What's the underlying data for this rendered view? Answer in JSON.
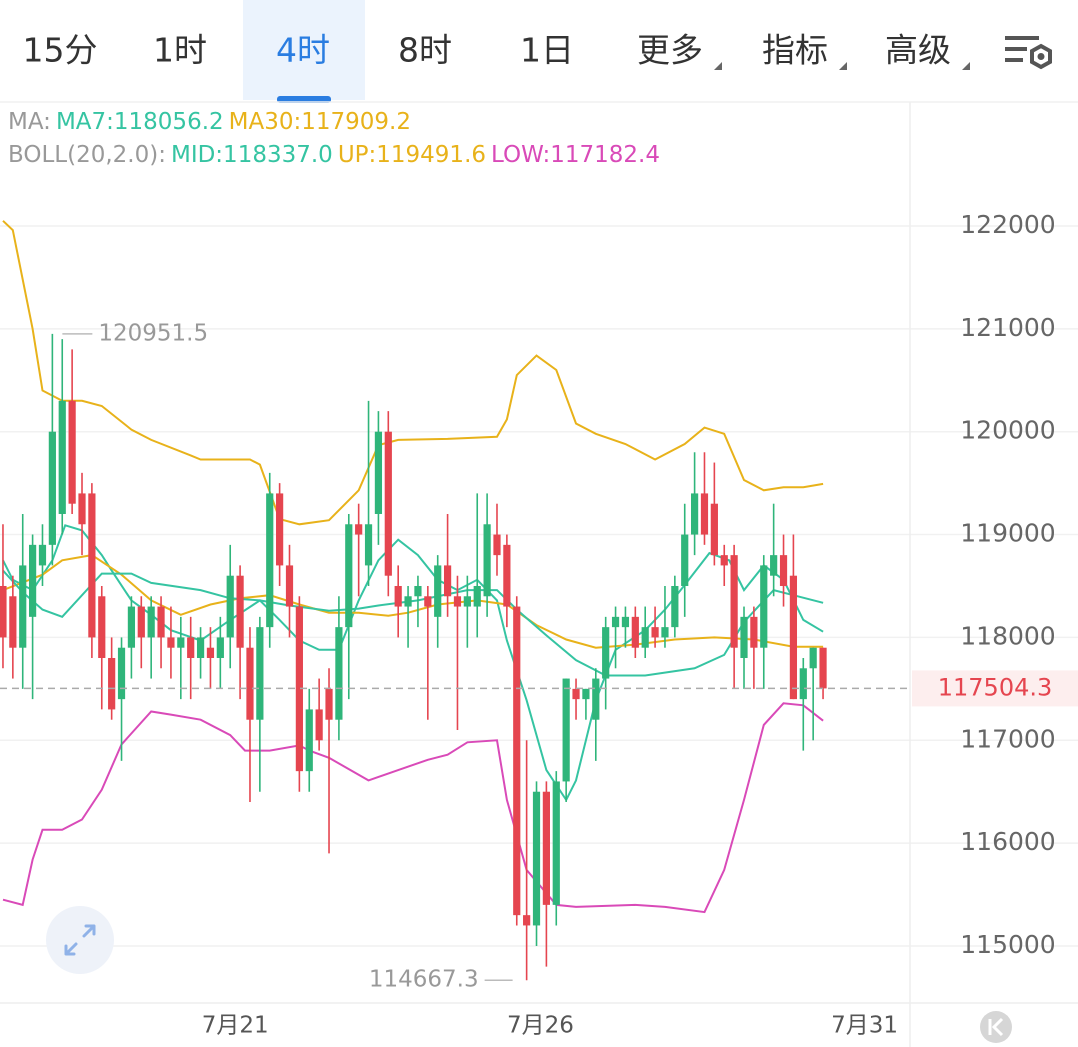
{
  "tabs": [
    {
      "label": "15分"
    },
    {
      "label": "1时"
    },
    {
      "label": "4时"
    },
    {
      "label": "8时"
    },
    {
      "label": "1日"
    },
    {
      "label": "更多",
      "dropdown": true
    },
    {
      "label": "指标",
      "dropdown": true
    },
    {
      "label": "高级",
      "dropdown": true
    }
  ],
  "selected_tab_index": 2,
  "chart_data": {
    "type": "candlestick",
    "legend_groups": [
      "MA:",
      "BOLL(20,2.0):"
    ],
    "up_color": "#2fb57a",
    "down_color": "#e5454f",
    "xlim": [
      -0.3,
      91.8
    ],
    "xticks": [
      {
        "value": 23.5,
        "label": "7月21"
      },
      {
        "value": 54.4,
        "label": "7月26"
      },
      {
        "value": 87.2,
        "label": "7月31"
      }
    ],
    "ylim": [
      114446,
      123176
    ],
    "yticks": [
      115000,
      116000,
      117000,
      118000,
      119000,
      120000,
      121000,
      122000
    ],
    "grid": true,
    "last_price": 117504.3,
    "high_index": 5,
    "low_index": 53,
    "ohlc": [
      [
        118500,
        119100,
        117700,
        118000
      ],
      [
        118400,
        118600,
        117600,
        117900
      ],
      [
        117900,
        119200,
        117500,
        118700
      ],
      [
        118200,
        119000,
        117400,
        118900
      ],
      [
        118700,
        119100,
        118500,
        118900
      ],
      [
        118900,
        120951.5,
        118700,
        120000
      ],
      [
        119200,
        120900,
        119000,
        120300
      ],
      [
        120300,
        120800,
        119200,
        119300
      ],
      [
        119400,
        119600,
        118800,
        119100
      ],
      [
        119400,
        119500,
        117800,
        118000
      ],
      [
        118400,
        118500,
        117300,
        117800
      ],
      [
        117800,
        118000,
        117200,
        117300
      ],
      [
        117400,
        118000,
        116800,
        117900
      ],
      [
        117900,
        118400,
        117600,
        118300
      ],
      [
        118300,
        118400,
        117700,
        118000
      ],
      [
        118000,
        118400,
        117600,
        118300
      ],
      [
        118300,
        118400,
        117700,
        118000
      ],
      [
        118000,
        118300,
        117600,
        117900
      ],
      [
        117900,
        118200,
        117400,
        118000
      ],
      [
        118000,
        118200,
        117400,
        117800
      ],
      [
        117800,
        118100,
        117600,
        118000
      ],
      [
        117900,
        118100,
        117500,
        117800
      ],
      [
        117800,
        118200,
        117500,
        118000
      ],
      [
        118000,
        118900,
        117700,
        118600
      ],
      [
        118600,
        118700,
        117400,
        117900
      ],
      [
        117900,
        118100,
        116400,
        117200
      ],
      [
        117200,
        118200,
        116500,
        118100
      ],
      [
        118100,
        119600,
        117900,
        119400
      ],
      [
        119400,
        119500,
        118500,
        118700
      ],
      [
        118700,
        118900,
        118000,
        118300
      ],
      [
        118300,
        118400,
        116500,
        116700
      ],
      [
        116700,
        117500,
        116500,
        117300
      ],
      [
        117300,
        117600,
        116900,
        117000
      ],
      [
        117500,
        117700,
        115900,
        117200
      ],
      [
        117200,
        118400,
        117000,
        118100
      ],
      [
        118100,
        119200,
        117400,
        119100
      ],
      [
        119100,
        119300,
        118400,
        119000
      ],
      [
        118700,
        120300,
        118500,
        119100
      ],
      [
        119200,
        120200,
        118900,
        120000
      ],
      [
        120000,
        120200,
        118400,
        118600
      ],
      [
        118500,
        118700,
        118000,
        118300
      ],
      [
        118300,
        118500,
        117900,
        118400
      ],
      [
        118400,
        118600,
        118100,
        118500
      ],
      [
        118400,
        118500,
        117200,
        118300
      ],
      [
        118200,
        118800,
        117900,
        118700
      ],
      [
        118700,
        119200,
        118200,
        118400
      ],
      [
        118400,
        118600,
        117100,
        118300
      ],
      [
        118300,
        118600,
        117900,
        118400
      ],
      [
        118300,
        119400,
        118000,
        118500
      ],
      [
        118400,
        119400,
        118200,
        119100
      ],
      [
        119000,
        119300,
        118600,
        118800
      ],
      [
        118900,
        119000,
        118100,
        118300
      ],
      [
        118300,
        118400,
        115200,
        115300
      ],
      [
        115300,
        117000,
        114667.3,
        115200
      ],
      [
        115200,
        116600,
        115000,
        116500
      ],
      [
        116500,
        116600,
        114800,
        115400
      ],
      [
        115400,
        116700,
        115200,
        116600
      ],
      [
        116600,
        117600,
        116400,
        117600
      ],
      [
        117500,
        117600,
        117200,
        117400
      ],
      [
        117400,
        117500,
        117200,
        117500
      ],
      [
        117200,
        117700,
        116800,
        117600
      ],
      [
        117600,
        118200,
        117300,
        118100
      ],
      [
        118100,
        118300,
        117700,
        118200
      ],
      [
        118100,
        118300,
        117900,
        118200
      ],
      [
        118200,
        118300,
        117800,
        117900
      ],
      [
        117900,
        118300,
        117800,
        118100
      ],
      [
        118100,
        118300,
        117900,
        118000
      ],
      [
        118000,
        118500,
        117900,
        118100
      ],
      [
        118100,
        118600,
        118000,
        118500
      ],
      [
        118500,
        119300,
        118200,
        119000
      ],
      [
        119000,
        119800,
        118800,
        119400
      ],
      [
        119400,
        119800,
        118900,
        119000
      ],
      [
        119300,
        119700,
        118700,
        118800
      ],
      [
        118800,
        118900,
        118500,
        118700
      ],
      [
        118800,
        118900,
        117500,
        117900
      ],
      [
        117800,
        118300,
        117500,
        118200
      ],
      [
        118200,
        118300,
        117500,
        117900
      ],
      [
        117900,
        118800,
        117500,
        118700
      ],
      [
        118600,
        119300,
        118400,
        118800
      ],
      [
        118800,
        119000,
        118300,
        118500
      ],
      [
        118600,
        119000,
        117400,
        117400
      ],
      [
        117400,
        117800,
        116900,
        117700
      ],
      [
        117700,
        117900,
        117000,
        117900
      ],
      [
        117900,
        117900,
        117400,
        117504.3
      ]
    ],
    "series": [
      {
        "name": "MA7:118056.2",
        "group": 0,
        "color": "#35c4a2",
        "x": [
          0,
          1,
          3,
          5,
          6.3,
          8,
          10,
          11,
          13,
          15,
          17,
          20,
          23,
          26,
          28,
          30,
          32,
          34,
          36,
          38,
          40,
          42,
          44,
          46,
          48,
          50,
          51,
          53,
          55,
          57,
          58,
          60,
          62,
          65,
          67,
          69,
          71.5,
          73.5,
          75,
          77,
          79,
          81,
          83
        ],
        "values": [
          118750,
          118560,
          118460,
          118750,
          119090,
          119040,
          118800,
          118650,
          118360,
          118220,
          118070,
          117970,
          118170,
          118360,
          118170,
          117970,
          117880,
          117880,
          118360,
          118750,
          118950,
          118800,
          118560,
          118460,
          118560,
          118360,
          117970,
          117390,
          116710,
          116420,
          116610,
          117390,
          117880,
          118070,
          118270,
          118510,
          118820,
          118750,
          118460,
          118700,
          118560,
          118170,
          118056
        ]
      },
      {
        "name": "MA30:117909.2",
        "group": 0,
        "color": "#e8b21a",
        "x": [
          0,
          4,
          6,
          9,
          12,
          15,
          18,
          21,
          24,
          27,
          30,
          33,
          36,
          39,
          41,
          44,
          48,
          51,
          54,
          57,
          60,
          64,
          68,
          72,
          76,
          80,
          83
        ],
        "values": [
          118460,
          118610,
          118750,
          118800,
          118610,
          118360,
          118220,
          118320,
          118380,
          118410,
          118320,
          118240,
          118240,
          118210,
          118240,
          118320,
          118360,
          118320,
          118120,
          117980,
          117900,
          117930,
          117980,
          118000,
          117980,
          117910,
          117909
        ]
      },
      {
        "name": "MID:118337.0",
        "group": 1,
        "color": "#35c4a2",
        "x": [
          0,
          2,
          4,
          6,
          10,
          13,
          15,
          20,
          23,
          26,
          29,
          33,
          36,
          38,
          42,
          47,
          50,
          52,
          55,
          58,
          61,
          65,
          70,
          73,
          75,
          78,
          80,
          83
        ],
        "values": [
          118650,
          118440,
          118270,
          118200,
          118620,
          118620,
          118530,
          118460,
          118380,
          118360,
          118310,
          118260,
          118280,
          118310,
          118360,
          118460,
          118460,
          118270,
          118020,
          117780,
          117630,
          117630,
          117700,
          117830,
          118150,
          118460,
          118410,
          118337
        ]
      },
      {
        "name": "UP:119491.6",
        "group": 1,
        "color": "#e8b21a",
        "x": [
          0,
          1,
          3,
          4,
          6,
          8,
          10,
          13,
          15,
          19,
          20,
          25,
          26,
          28,
          30,
          33,
          36,
          38,
          40,
          45,
          50,
          51,
          52,
          54,
          56,
          58,
          60,
          63,
          66,
          69,
          71,
          73,
          75,
          77,
          79,
          81,
          83
        ],
        "values": [
          122050,
          121960,
          121000,
          120400,
          120300,
          120300,
          120250,
          120020,
          119920,
          119770,
          119730,
          119730,
          119680,
          119150,
          119100,
          119140,
          119430,
          119870,
          119920,
          119930,
          119950,
          120120,
          120550,
          120740,
          120600,
          120080,
          119980,
          119880,
          119730,
          119880,
          120040,
          119980,
          119530,
          119430,
          119460,
          119460,
          119492
        ]
      },
      {
        "name": "LOW:117182.4",
        "group": 1,
        "color": "#d94ab8",
        "x": [
          0,
          2,
          3,
          4,
          6,
          8,
          10,
          12,
          15,
          17,
          20,
          23,
          24.5,
          27,
          30,
          31,
          33,
          37,
          40,
          43,
          45,
          47,
          50,
          51,
          53,
          56,
          58,
          64,
          67,
          71,
          73,
          75,
          77,
          79,
          81,
          83
        ],
        "values": [
          115450,
          115400,
          115840,
          116130,
          116130,
          116230,
          116520,
          116960,
          117280,
          117250,
          117200,
          117050,
          116900,
          116900,
          116950,
          116900,
          116830,
          116610,
          116710,
          116810,
          116860,
          116980,
          117000,
          116420,
          115740,
          115400,
          115380,
          115400,
          115380,
          115330,
          115740,
          116420,
          117150,
          117360,
          117340,
          117190
        ]
      }
    ]
  }
}
